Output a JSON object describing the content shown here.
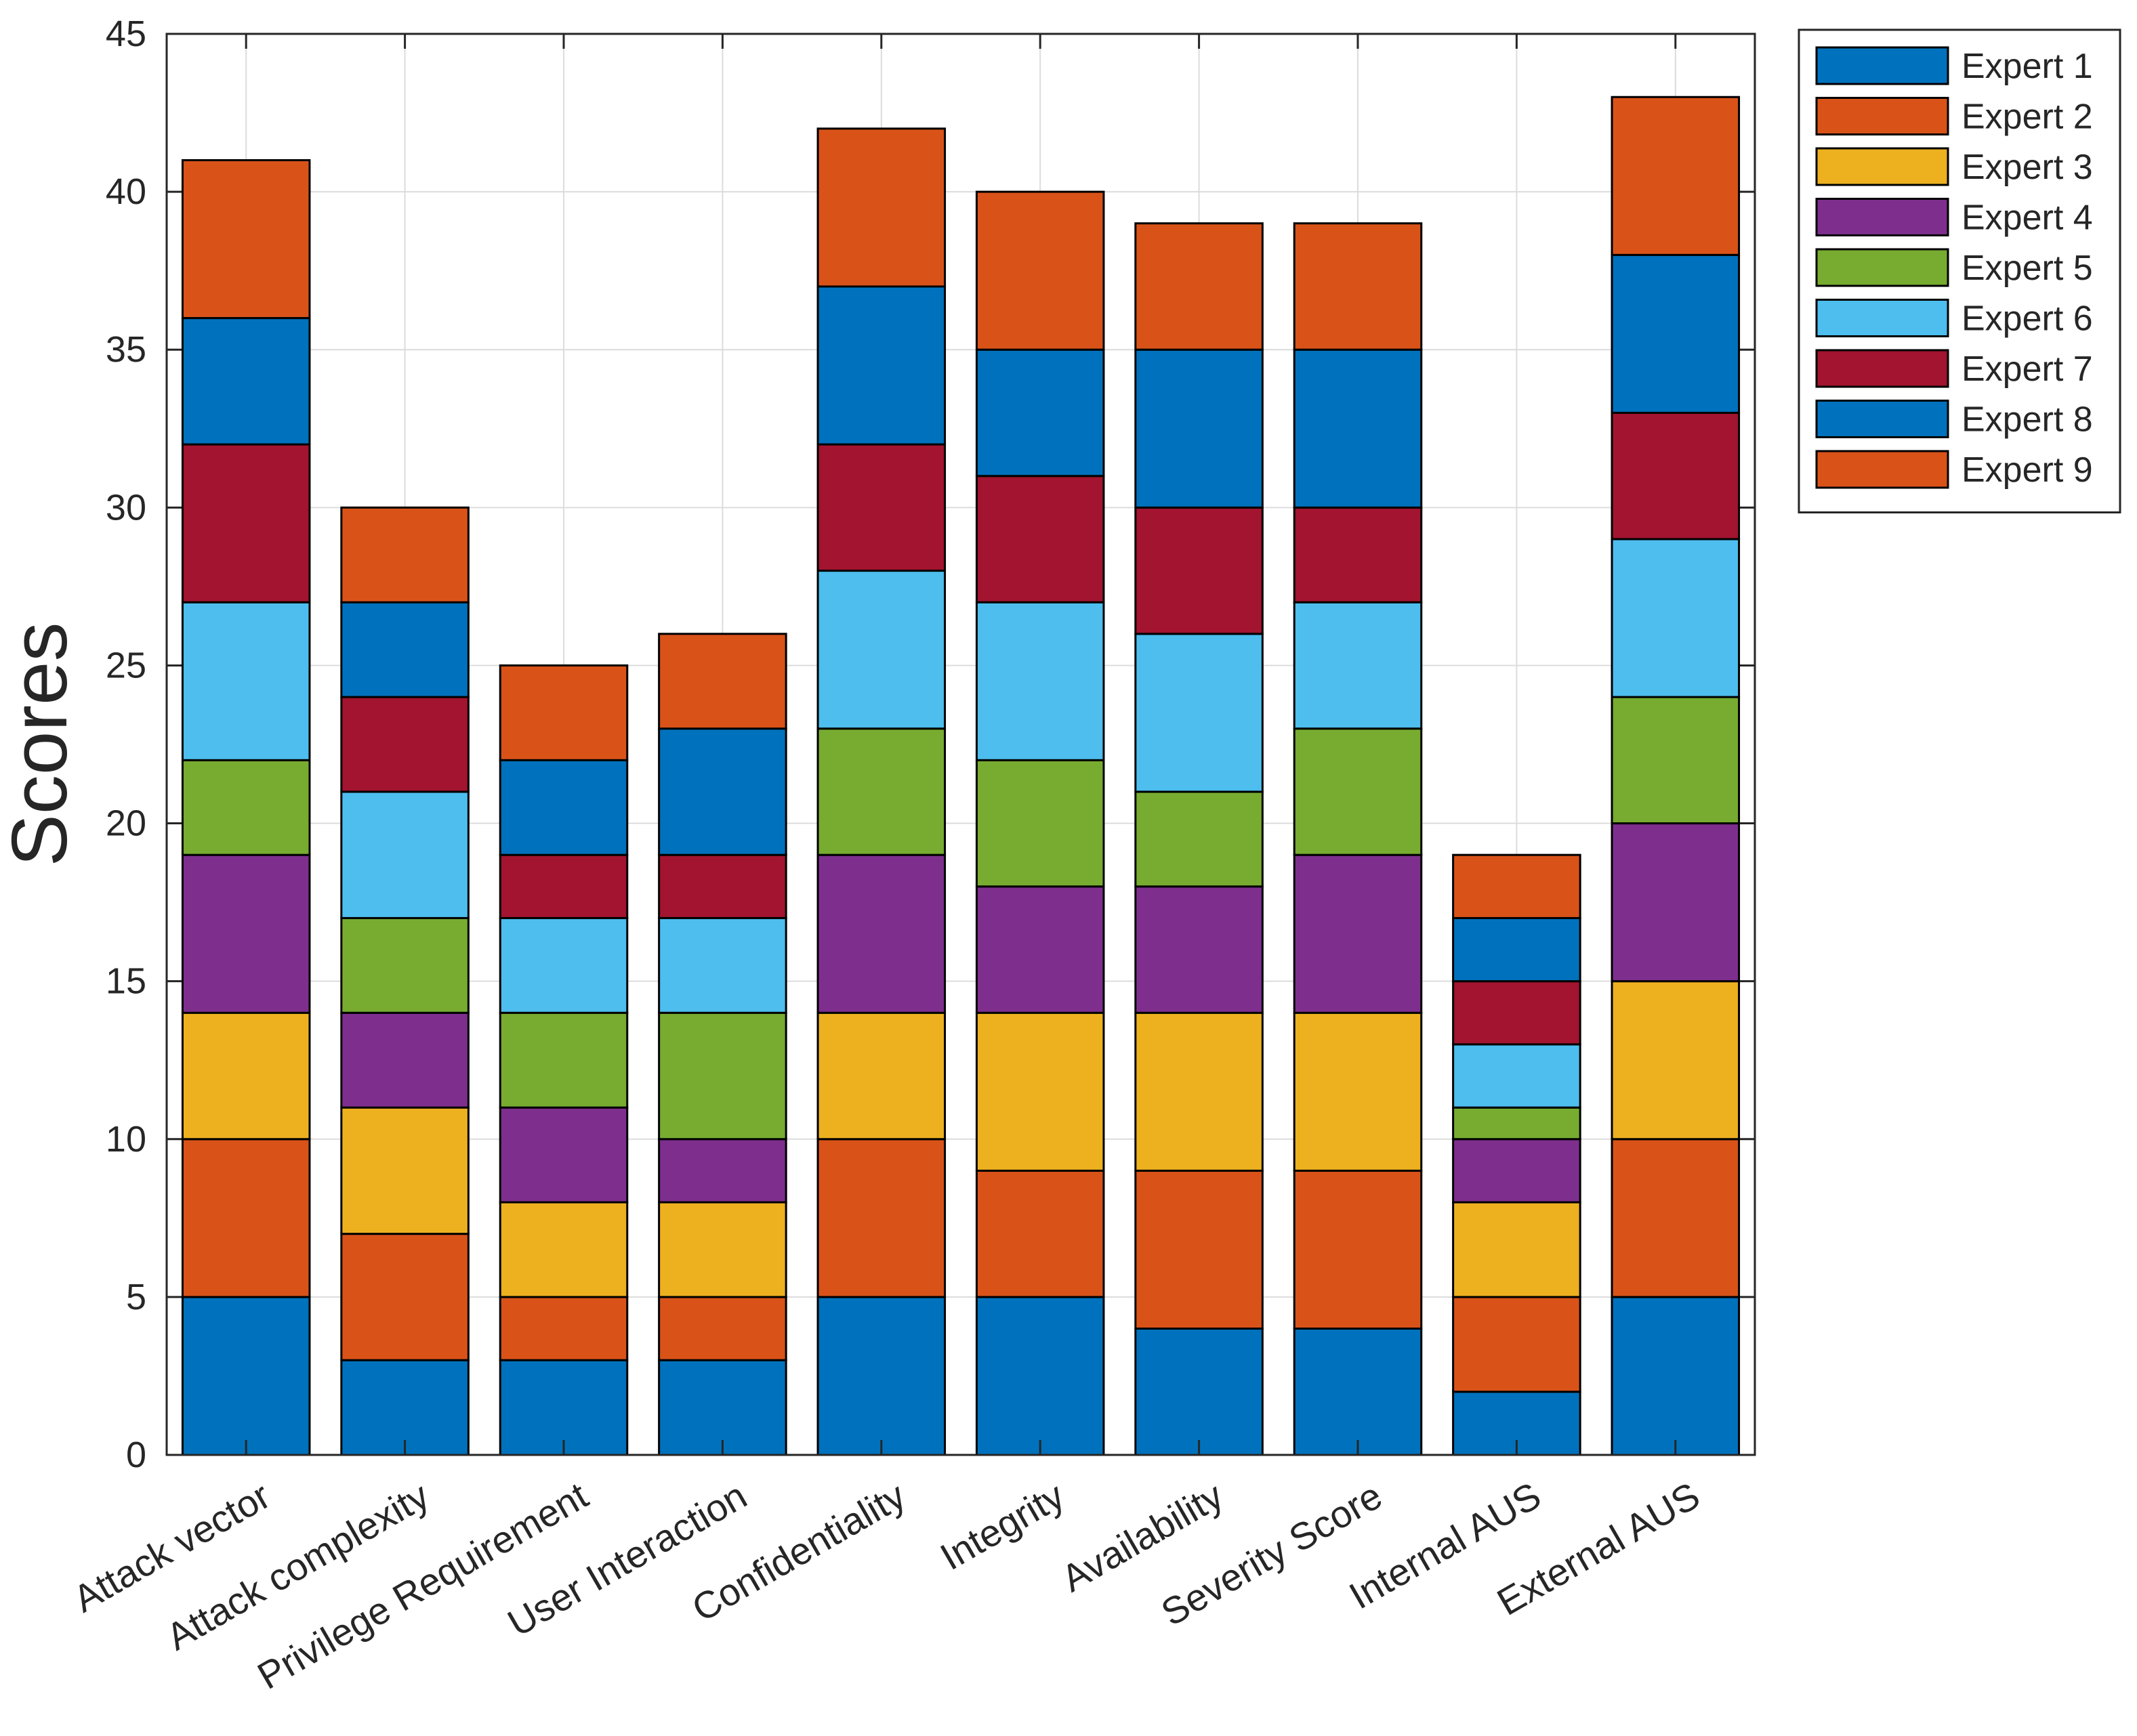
{
  "chart_data": {
    "type": "bar",
    "stacked": true,
    "title": "",
    "xlabel": "",
    "ylabel": "Scores",
    "ylim": [
      0,
      45
    ],
    "yticks": [
      0,
      5,
      10,
      15,
      20,
      25,
      30,
      35,
      40,
      45
    ],
    "grid": true,
    "legend_position": "top-right, outside",
    "categories": [
      "Attack vector",
      "Attack complexity",
      "Privilege Requirement",
      "User Interaction",
      "Confidentiality",
      "Integrity",
      "Availability",
      "Severity Score",
      "Internal AUS",
      "External AUS"
    ],
    "series": [
      {
        "name": "Expert 1",
        "color": "#0072BD",
        "values": [
          5,
          3,
          3,
          3,
          5,
          5,
          4,
          4,
          2,
          5
        ]
      },
      {
        "name": "Expert 2",
        "color": "#D95319",
        "values": [
          5,
          4,
          2,
          2,
          5,
          4,
          5,
          5,
          3,
          5
        ]
      },
      {
        "name": "Expert 3",
        "color": "#EDB120",
        "values": [
          4,
          4,
          3,
          3,
          4,
          5,
          5,
          5,
          3,
          5
        ]
      },
      {
        "name": "Expert 4",
        "color": "#7E2F8E",
        "values": [
          5,
          3,
          3,
          2,
          5,
          4,
          4,
          5,
          2,
          5
        ]
      },
      {
        "name": "Expert 5",
        "color": "#77AC30",
        "values": [
          3,
          3,
          3,
          4,
          4,
          4,
          3,
          4,
          1,
          4
        ]
      },
      {
        "name": "Expert 6",
        "color": "#4DBEEE",
        "values": [
          5,
          4,
          3,
          3,
          5,
          5,
          5,
          4,
          2,
          5
        ]
      },
      {
        "name": "Expert 7",
        "color": "#A2142F",
        "values": [
          5,
          3,
          2,
          2,
          4,
          4,
          4,
          3,
          2,
          4
        ]
      },
      {
        "name": "Expert 8",
        "color": "#0072BD",
        "values": [
          4,
          3,
          3,
          4,
          5,
          4,
          5,
          5,
          2,
          5
        ]
      },
      {
        "name": "Expert 9",
        "color": "#D95319",
        "values": [
          5,
          3,
          3,
          3,
          5,
          5,
          4,
          4,
          2,
          5
        ]
      }
    ]
  }
}
